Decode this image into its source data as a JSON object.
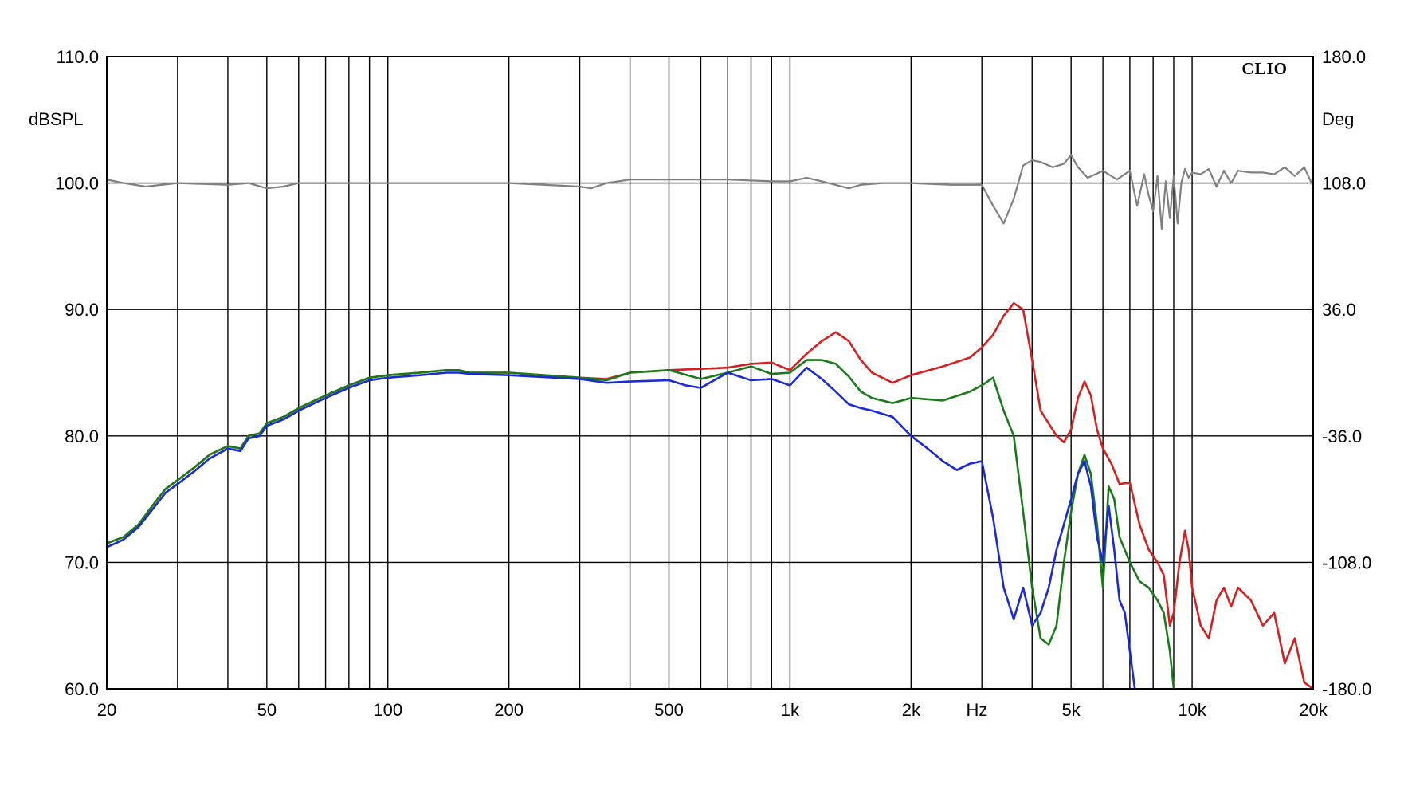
{
  "chart_data": {
    "type": "line",
    "title": "",
    "brand": "CLIO",
    "xscale": "log",
    "xlim": [
      20,
      20000
    ],
    "ylim": [
      60,
      110
    ],
    "y2lim": [
      -180,
      180
    ],
    "xlabel": "Hz",
    "ylabel": "dBSPL",
    "y2label": "Deg",
    "grid": true,
    "x_ticks": [
      {
        "value": 20,
        "label": "20"
      },
      {
        "value": 50,
        "label": "50"
      },
      {
        "value": 100,
        "label": "100"
      },
      {
        "value": 200,
        "label": "200"
      },
      {
        "value": 500,
        "label": "500"
      },
      {
        "value": 1000,
        "label": "1k"
      },
      {
        "value": 2000,
        "label": "2k"
      },
      {
        "value": 5000,
        "label": "5k"
      },
      {
        "value": 10000,
        "label": "10k"
      },
      {
        "value": 20000,
        "label": "20k"
      }
    ],
    "y_ticks": [
      {
        "value": 60,
        "label": "60.0"
      },
      {
        "value": 70,
        "label": "70.0"
      },
      {
        "value": 80,
        "label": "80.0"
      },
      {
        "value": 90,
        "label": "90.0"
      },
      {
        "value": 100,
        "label": "100.0"
      },
      {
        "value": 110,
        "label": "110.0"
      }
    ],
    "y2_ticks": [
      {
        "value": -180,
        "label": "-180.0"
      },
      {
        "value": -108,
        "label": "-108.0"
      },
      {
        "value": -36,
        "label": "-36.0"
      },
      {
        "value": 36,
        "label": "36.0"
      },
      {
        "value": 108,
        "label": "108.0"
      },
      {
        "value": 180,
        "label": "180.0"
      }
    ],
    "grid_x": [
      20,
      30,
      40,
      50,
      60,
      70,
      80,
      90,
      100,
      200,
      300,
      400,
      500,
      600,
      700,
      800,
      900,
      1000,
      2000,
      3000,
      4000,
      5000,
      6000,
      7000,
      8000,
      9000,
      10000,
      20000
    ],
    "series": [
      {
        "color": "#808080",
        "axis": "right",
        "x": [
          20,
          22,
          25,
          30,
          40,
          45,
          50,
          55,
          60,
          100,
          200,
          300,
          320,
          350,
          400,
          500,
          700,
          900,
          1000,
          1100,
          1200,
          1400,
          1500,
          1700,
          2000,
          2500,
          3000,
          3200,
          3400,
          3600,
          3800,
          4000,
          4200,
          4500,
          4800,
          5000,
          5200,
          5500,
          6000,
          6500,
          7000,
          7300,
          7600,
          7800,
          8000,
          8200,
          8400,
          8600,
          8800,
          9000,
          9200,
          9400,
          9600,
          9800,
          10000,
          10500,
          11000,
          11500,
          12000,
          12500,
          13000,
          14000,
          15000,
          16000,
          17000,
          18000,
          19000,
          20000
        ],
        "y": [
          110,
          108,
          106,
          108,
          107,
          108,
          105,
          106,
          108,
          108,
          108,
          106,
          105,
          108,
          110,
          110,
          110,
          109,
          109,
          111,
          109,
          105,
          107,
          108,
          108,
          107,
          107,
          95,
          85,
          99,
          118,
          121,
          120,
          117,
          119,
          124,
          117,
          111,
          115,
          110,
          115,
          95,
          113,
          101,
          92,
          112,
          82,
          109,
          88,
          112,
          85,
          108,
          116,
          111,
          114,
          113,
          116,
          106,
          115,
          108,
          115,
          114,
          114,
          113,
          117,
          112,
          117,
          106
        ]
      },
      {
        "color": "#d42020",
        "axis": "left",
        "x": [
          20,
          22,
          24,
          26,
          28,
          30,
          33,
          36,
          40,
          43,
          45,
          48,
          50,
          55,
          60,
          70,
          80,
          90,
          100,
          120,
          140,
          150,
          160,
          200,
          300,
          350,
          400,
          500,
          600,
          700,
          800,
          900,
          1000,
          1100,
          1200,
          1300,
          1400,
          1500,
          1600,
          1800,
          2000,
          2400,
          2800,
          3000,
          3200,
          3400,
          3600,
          3800,
          4000,
          4200,
          4600,
          4800,
          5000,
          5200,
          5400,
          5600,
          5800,
          6000,
          6300,
          6600,
          7000,
          7400,
          7800,
          8200,
          8500,
          8800,
          9000,
          9300,
          9600,
          9800,
          10000,
          10500,
          11000,
          11500,
          12000,
          12500,
          13000,
          14000,
          15000,
          16000,
          17000,
          18000,
          19000,
          20000
        ],
        "y": [
          71.5,
          72,
          73,
          74.5,
          75.8,
          76.5,
          77.5,
          78.5,
          79.2,
          79,
          80,
          80.2,
          81,
          81.5,
          82.2,
          83.2,
          84,
          84.6,
          84.8,
          85,
          85.2,
          85.2,
          85,
          85,
          84.6,
          84.5,
          85,
          85.2,
          85.3,
          85.4,
          85.7,
          85.8,
          85.2,
          86.5,
          87.5,
          88.2,
          87.5,
          86,
          85,
          84.2,
          84.8,
          85.5,
          86.2,
          87,
          88,
          89.5,
          90.5,
          90,
          86,
          82,
          80,
          79.5,
          80.5,
          83,
          84.3,
          83.2,
          80.5,
          79,
          77.8,
          76.2,
          76.3,
          73,
          71,
          70,
          69,
          65,
          66,
          70,
          72.5,
          71,
          68,
          65,
          64,
          67,
          68,
          66.5,
          68,
          67,
          65,
          66,
          62,
          64,
          60.5,
          60
        ]
      },
      {
        "color": "#1a7a1a",
        "axis": "left",
        "x": [
          20,
          22,
          24,
          26,
          28,
          30,
          33,
          36,
          40,
          43,
          45,
          48,
          50,
          55,
          60,
          70,
          80,
          90,
          100,
          120,
          140,
          150,
          160,
          200,
          300,
          350,
          400,
          500,
          600,
          700,
          800,
          900,
          1000,
          1100,
          1200,
          1300,
          1400,
          1500,
          1600,
          1800,
          2000,
          2400,
          2800,
          3000,
          3200,
          3400,
          3600,
          3800,
          4000,
          4200,
          4400,
          4600,
          4800,
          5000,
          5200,
          5400,
          5600,
          5800,
          6000,
          6200,
          6400,
          6600,
          7000,
          7400,
          7800,
          8200,
          8500,
          8800,
          9000
        ],
        "y": [
          71.5,
          72,
          73,
          74.5,
          75.8,
          76.5,
          77.5,
          78.5,
          79.2,
          79,
          80,
          80.2,
          81,
          81.5,
          82.2,
          83.2,
          84,
          84.6,
          84.8,
          85,
          85.2,
          85.2,
          85,
          85,
          84.6,
          84.4,
          85,
          85.2,
          84.5,
          85,
          85.5,
          84.9,
          85,
          86,
          86,
          85.7,
          84.7,
          83.5,
          83,
          82.6,
          83,
          82.8,
          83.5,
          84,
          84.6,
          82,
          80,
          74,
          68,
          64,
          63.5,
          65,
          70,
          74,
          77,
          78.5,
          77,
          73,
          68,
          76,
          75,
          72,
          70,
          68.5,
          68,
          67,
          66,
          63,
          60
        ]
      },
      {
        "color": "#1a2ad4",
        "axis": "left",
        "x": [
          20,
          22,
          24,
          26,
          28,
          30,
          33,
          36,
          40,
          43,
          45,
          48,
          50,
          55,
          60,
          70,
          80,
          90,
          100,
          120,
          140,
          150,
          160,
          200,
          300,
          350,
          400,
          500,
          550,
          600,
          700,
          800,
          900,
          1000,
          1100,
          1200,
          1300,
          1400,
          1500,
          1600,
          1800,
          2000,
          2200,
          2400,
          2600,
          2800,
          3000,
          3200,
          3400,
          3600,
          3800,
          4000,
          4200,
          4400,
          4600,
          4800,
          5000,
          5200,
          5400,
          5600,
          5800,
          6000,
          6200,
          6400,
          6600,
          6800,
          7000,
          7200
        ],
        "y": [
          71.2,
          71.8,
          72.8,
          74.2,
          75.5,
          76.2,
          77.2,
          78.2,
          79,
          78.8,
          79.8,
          80,
          80.8,
          81.3,
          82,
          83,
          83.8,
          84.4,
          84.6,
          84.8,
          85,
          85,
          84.9,
          84.8,
          84.5,
          84.2,
          84.3,
          84.4,
          84,
          83.8,
          85,
          84.4,
          84.5,
          84,
          85.4,
          84.5,
          83.5,
          82.5,
          82.2,
          82,
          81.5,
          80,
          79,
          78,
          77.3,
          77.8,
          78,
          73.5,
          68,
          65.5,
          68,
          65,
          66,
          68,
          71,
          73,
          75,
          77,
          78,
          76,
          72,
          70,
          74.5,
          71,
          67,
          66,
          63,
          60
        ]
      }
    ]
  }
}
